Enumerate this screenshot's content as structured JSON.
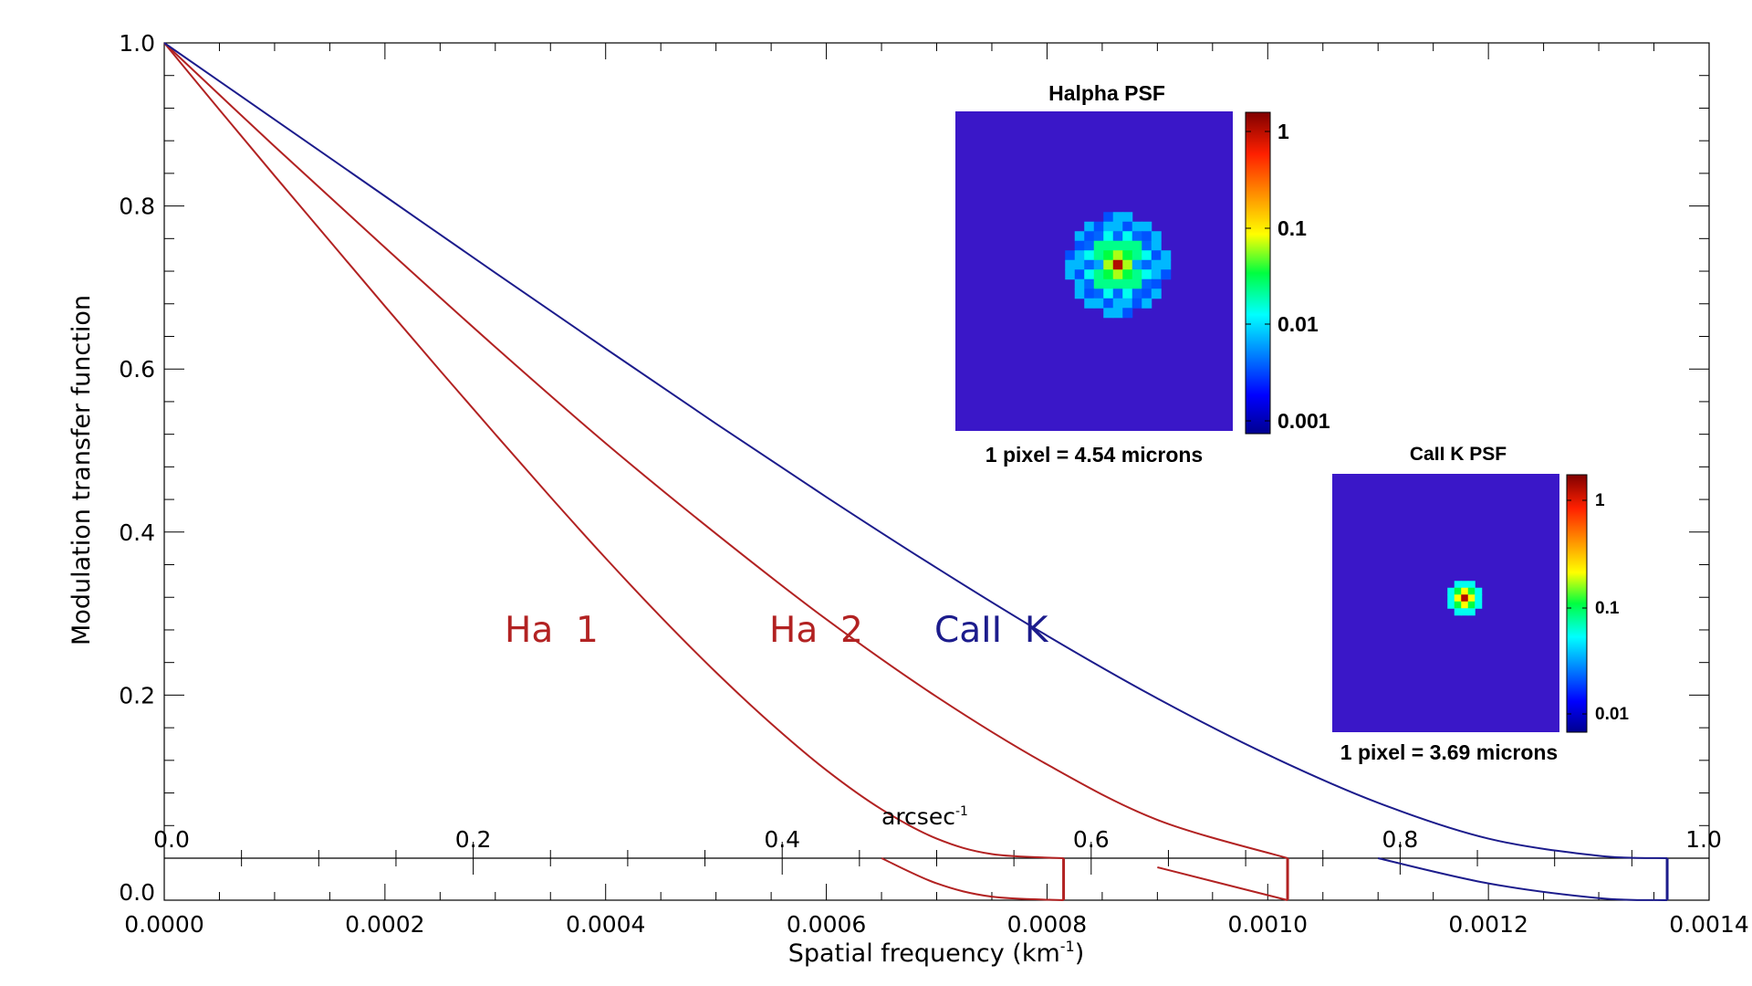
{
  "chart_data": {
    "type": "line",
    "ylabel": "Modulation transfer function",
    "xlabel": "Spatial frequency (km",
    "xlabel_sup": "-1",
    "xlabel_end": ")",
    "xlim": [
      0,
      0.0014
    ],
    "ylim": [
      0,
      1.0
    ],
    "x_ticks": [
      "0.0000",
      "0.0002",
      "0.0004",
      "0.0006",
      "0.0008",
      "0.0010",
      "0.0012",
      "0.0014"
    ],
    "x_tick_values": [
      0,
      0.0002,
      0.0004,
      0.0006,
      0.0008,
      0.001,
      0.0012,
      0.0014
    ],
    "y_ticks": [
      "0.0",
      "0.2",
      "0.4",
      "0.6",
      "0.8",
      "1.0"
    ],
    "y_tick_values": [
      0,
      0.2,
      0.4,
      0.6,
      0.8,
      1.0
    ],
    "secondary_axis": {
      "label": "arcsec",
      "label_sup": "-1",
      "ticks": [
        "0.0",
        "0.2",
        "0.4",
        "0.6",
        "0.8",
        "1.0"
      ],
      "tick_values": [
        0,
        0.2,
        0.4,
        0.6,
        0.8,
        1.0
      ],
      "range": [
        0,
        1.0
      ]
    },
    "series": [
      {
        "name": "Ha 1",
        "color": "#b22222",
        "cutoff": 0.000815,
        "x": [
          0,
          5e-05,
          0.0001,
          0.00015,
          0.0002,
          0.00025,
          0.0003,
          0.00035,
          0.0004,
          0.00045,
          0.0005,
          0.00055,
          0.0006,
          0.00065,
          0.0007,
          0.00075,
          0.000815
        ],
        "y": [
          1.0,
          0.918,
          0.837,
          0.757,
          0.677,
          0.598,
          0.52,
          0.443,
          0.368,
          0.296,
          0.228,
          0.165,
          0.108,
          0.06,
          0.024,
          0.005,
          0.0
        ]
      },
      {
        "name": "Ha 2",
        "color": "#b22222",
        "cutoff": 0.001018,
        "x": [
          0,
          0.0001,
          0.0002,
          0.0003,
          0.0004,
          0.0005,
          0.0006,
          0.0007,
          0.0008,
          0.0009,
          0.001018
        ],
        "y": [
          1.0,
          0.873,
          0.749,
          0.627,
          0.509,
          0.398,
          0.293,
          0.198,
          0.115,
          0.047,
          0.0
        ]
      },
      {
        "name": "CaII K",
        "color": "#1c1c8c",
        "cutoff": 0.001362,
        "x": [
          0,
          0.0001,
          0.0002,
          0.0003,
          0.0004,
          0.0005,
          0.0006,
          0.0007,
          0.0008,
          0.0009,
          0.001,
          0.0011,
          0.0012,
          0.0013,
          0.001362
        ],
        "y": [
          1.0,
          0.906,
          0.812,
          0.718,
          0.625,
          0.533,
          0.443,
          0.356,
          0.273,
          0.196,
          0.127,
          0.068,
          0.024,
          0.003,
          0.0
        ]
      }
    ],
    "curve_labels": [
      {
        "text": "Ha  1",
        "color": "#b22222"
      },
      {
        "text": "Ha  2",
        "color": "#b22222"
      },
      {
        "text": "CaII  K",
        "color": "#1c1c8c"
      }
    ],
    "insets": [
      {
        "title": "Halpha PSF",
        "caption": "1 pixel = 4.54 microns",
        "colorbar_labels": [
          "1",
          "0.1",
          "0.01",
          "0.001"
        ]
      },
      {
        "title": "CaII K PSF",
        "caption": "1 pixel = 3.69 microns",
        "colorbar_labels": [
          "1",
          "0.1",
          "0.01"
        ]
      }
    ]
  }
}
